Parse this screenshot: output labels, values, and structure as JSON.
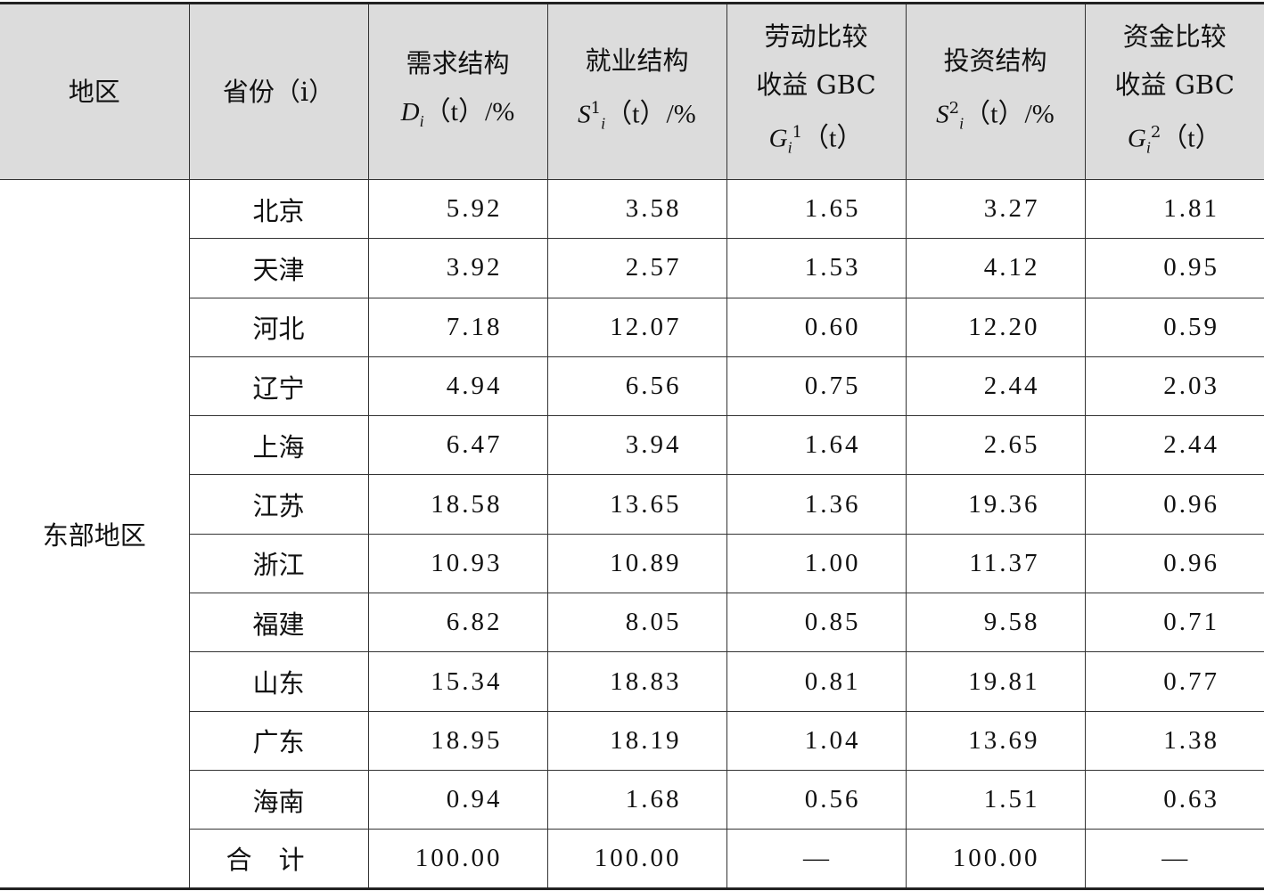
{
  "header": {
    "region": "地区",
    "province": "省份（i）",
    "demand": {
      "title": "需求结构",
      "symbol": "D",
      "sub": "i",
      "suffix": "（t）/%"
    },
    "employment": {
      "title": "就业结构",
      "symbol": "S",
      "sub": "i",
      "sup": "1",
      "suffix": "（t）/%"
    },
    "labor_gbc": {
      "line1": "劳动比较",
      "line2": "收益 GBC",
      "symbol": "G",
      "sub": "i",
      "sup": "1",
      "suffix": "（t）"
    },
    "investment": {
      "title": "投资结构",
      "symbol": "S",
      "sub": "i",
      "sup": "2",
      "suffix": "（t）/%"
    },
    "capital_gbc": {
      "line1": "资金比较",
      "line2": "收益 GBC",
      "symbol": "G",
      "sub": "i",
      "sup": "2",
      "suffix": "（t）"
    }
  },
  "region_label": "东部地区",
  "rows": [
    {
      "province": "北京",
      "values": [
        "5.92",
        "3.58",
        "1.65",
        "3.27",
        "1.81"
      ]
    },
    {
      "province": "天津",
      "values": [
        "3.92",
        "2.57",
        "1.53",
        "4.12",
        "0.95"
      ]
    },
    {
      "province": "河北",
      "values": [
        "7.18",
        "12.07",
        "0.60",
        "12.20",
        "0.59"
      ]
    },
    {
      "province": "辽宁",
      "values": [
        "4.94",
        "6.56",
        "0.75",
        "2.44",
        "2.03"
      ]
    },
    {
      "province": "上海",
      "values": [
        "6.47",
        "3.94",
        "1.64",
        "2.65",
        "2.44"
      ]
    },
    {
      "province": "江苏",
      "values": [
        "18.58",
        "13.65",
        "1.36",
        "19.36",
        "0.96"
      ]
    },
    {
      "province": "浙江",
      "values": [
        "10.93",
        "10.89",
        "1.00",
        "11.37",
        "0.96"
      ]
    },
    {
      "province": "福建",
      "values": [
        "6.82",
        "8.05",
        "0.85",
        "9.58",
        "0.71"
      ]
    },
    {
      "province": "山东",
      "values": [
        "15.34",
        "18.83",
        "0.81",
        "19.81",
        "0.77"
      ]
    },
    {
      "province": "广东",
      "values": [
        "18.95",
        "18.19",
        "1.04",
        "13.69",
        "1.38"
      ]
    },
    {
      "province": "海南",
      "values": [
        "0.94",
        "1.68",
        "0.56",
        "1.51",
        "0.63"
      ]
    }
  ],
  "total": {
    "label": "合计",
    "values": [
      "100.00",
      "100.00",
      "—",
      "100.00",
      "—"
    ]
  }
}
